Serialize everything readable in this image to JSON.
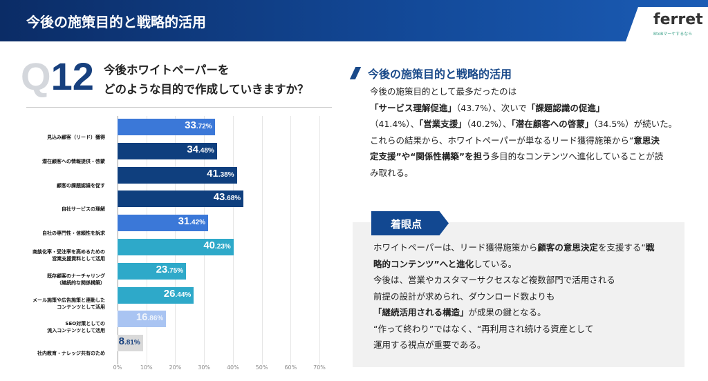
{
  "header": {
    "title": "今後の施策目的と戦略的活用",
    "logo": "ferret",
    "logo_sub": "BtoBマーケするなら"
  },
  "question": {
    "q": "Q",
    "num": "12",
    "lines": [
      "今後ホワイトペーパーを",
      "どのような目的で作成していきますか？"
    ]
  },
  "colors": {
    "blue": "#3b78d8",
    "navy": "#0f3f7e",
    "teal": "#2ea9c9",
    "light": "#a9c4f2",
    "gray": "#d9d9d9"
  },
  "chart_data": {
    "type": "bar",
    "orientation": "horizontal",
    "categories": [
      [
        "見込み顧客（リード）獲得"
      ],
      [
        "潜在顧客への情報提供・啓蒙"
      ],
      [
        "顧客の課題認識を促す"
      ],
      [
        "自社サービスの理解"
      ],
      [
        "自社の専門性・信頼性を訴求"
      ],
      [
        "商談化率・受注率を高めるための",
        "営業支援資料として活用"
      ],
      [
        "既存顧客のナーチャリング",
        "（継続的な関係構築）"
      ],
      [
        "メール施策や広告施策と連動した",
        "コンテンツとして活用"
      ],
      [
        "SEO対策としての",
        "流入コンテンツとして活用"
      ],
      [
        "社内教育・ナレッジ共有のため"
      ]
    ],
    "values": [
      33.72,
      34.48,
      41.38,
      43.68,
      31.42,
      40.23,
      23.75,
      26.44,
      16.86,
      8.81
    ],
    "bar_colors": [
      "blue",
      "navy",
      "navy",
      "navy",
      "blue",
      "teal",
      "teal",
      "teal",
      "light",
      "gray"
    ],
    "xlim": [
      0,
      70
    ],
    "xticks": [
      "0%",
      "10%",
      "20%",
      "30%",
      "40%",
      "50%",
      "60%",
      "70%"
    ]
  },
  "summary": {
    "title": "今後の施策目的と戦略的活用",
    "lines": [
      [
        {
          "t": "今後の施策目的として最多だったのは"
        }
      ],
      [
        {
          "t": "「サービス理解促進」",
          "b": 1
        },
        {
          "t": "（43.7%）、次いで"
        },
        {
          "t": "「課題認識の促進」",
          "b": 1
        }
      ],
      [
        {
          "t": "（41.4%）、"
        },
        {
          "t": "「営業支援」",
          "b": 1
        },
        {
          "t": "（40.2%）、"
        },
        {
          "t": "「潜在顧客への啓蒙」",
          "b": 1
        },
        {
          "t": "（34.5%）が続いた。"
        }
      ],
      [
        {
          "t": "これらの結果から、ホワイトペーパーが単なるリード獲得施策から“"
        },
        {
          "t": "意思決",
          "b": 1
        }
      ],
      [
        {
          "t": "定支援”や“関係性構築”を担う",
          "b": 1
        },
        {
          "t": "多目的なコンテンツへ進化していることが読"
        }
      ],
      [
        {
          "t": "み取れる。"
        }
      ]
    ]
  },
  "focus": {
    "tag": "着眼点",
    "lines": [
      [
        {
          "t": "ホワイトペーパーは、リード獲得施策から"
        },
        {
          "t": "顧客の意思決定",
          "b": 1
        },
        {
          "t": "を支援する“"
        },
        {
          "t": "戦",
          "b": 1
        }
      ],
      [
        {
          "t": "略的コンテンツ”へと進化",
          "b": 1
        },
        {
          "t": "している。"
        }
      ],
      [
        {
          "t": "今後は、営業やカスタマーサクセスなど複数部門で活用される"
        }
      ],
      [
        {
          "t": "前提の設計が求められ、ダウンロード数よりも"
        }
      ],
      [
        {
          "t": "「継続活用される構造」",
          "b": 1
        },
        {
          "t": "が成果の鍵となる。"
        }
      ],
      [
        {
          "t": "“作って終わり”ではなく、“再利用され続ける資産として"
        }
      ],
      [
        {
          "t": "運用する視点が重要である。"
        }
      ]
    ]
  }
}
